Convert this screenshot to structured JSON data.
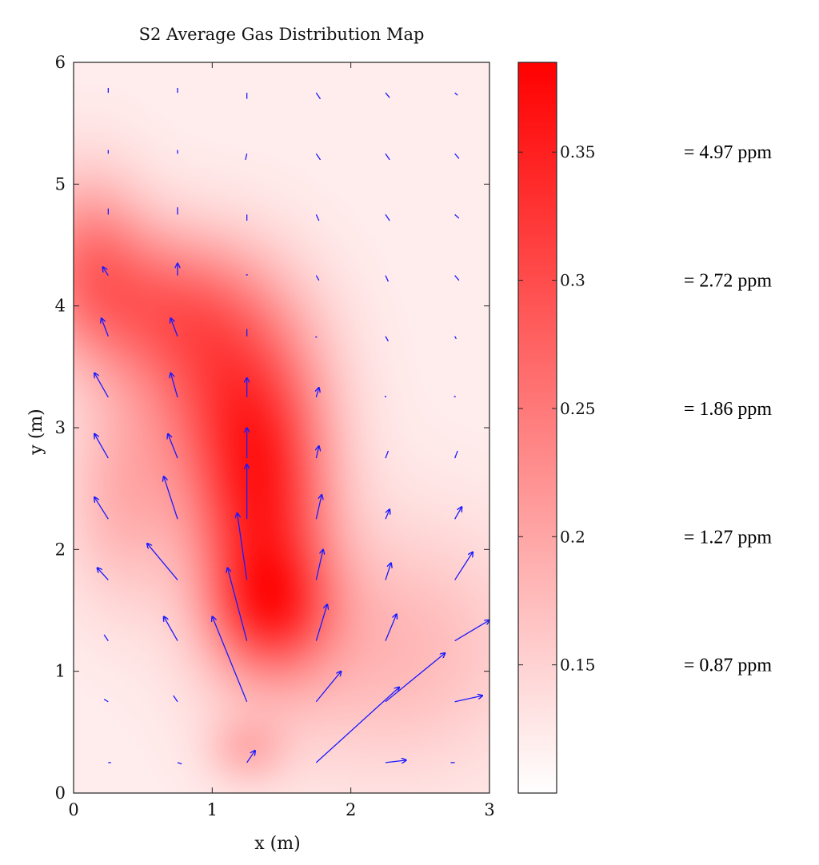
{
  "chart_data": {
    "type": "heatmap",
    "title": "S2 Average Gas Distribution Map",
    "xlabel": "x (m)",
    "ylabel": "y (m)",
    "xlim": [
      0,
      3
    ],
    "ylim": [
      0,
      6
    ],
    "x_ticks": [
      0,
      1,
      2,
      3
    ],
    "y_ticks": [
      0,
      1,
      2,
      3,
      4,
      5,
      6
    ],
    "colorbar": {
      "range": [
        0.1,
        0.385
      ],
      "ticks": [
        0.15,
        0.2,
        0.25,
        0.3,
        0.35
      ],
      "tick_labels": [
        "0.15",
        "0.2",
        "0.25",
        "0.3",
        "0.35"
      ],
      "color_low": "#ffffff",
      "color_high": "#ff0000"
    },
    "ppm_labels": [
      {
        "at_value": 0.35,
        "text": "= 4.97 ppm"
      },
      {
        "at_value": 0.3,
        "text": "= 2.72 ppm"
      },
      {
        "at_value": 0.25,
        "text": "= 1.86 ppm"
      },
      {
        "at_value": 0.2,
        "text": "= 1.27 ppm"
      },
      {
        "at_value": 0.15,
        "text": "= 0.87 ppm"
      }
    ],
    "concentration_blobs": [
      {
        "x": 1.35,
        "y": 2.3,
        "sx": 0.35,
        "sy": 0.8,
        "amp": 0.2
      },
      {
        "x": 1.1,
        "y": 3.3,
        "sx": 0.45,
        "sy": 0.6,
        "amp": 0.12
      },
      {
        "x": 0.65,
        "y": 4.0,
        "sx": 0.5,
        "sy": 0.45,
        "amp": 0.12
      },
      {
        "x": 0.1,
        "y": 4.4,
        "sx": 0.3,
        "sy": 0.5,
        "amp": 0.1
      },
      {
        "x": 1.45,
        "y": 1.5,
        "sx": 0.3,
        "sy": 0.35,
        "amp": 0.1
      },
      {
        "x": 0.35,
        "y": 2.4,
        "sx": 0.3,
        "sy": 0.6,
        "amp": 0.06
      },
      {
        "x": 2.3,
        "y": 1.2,
        "sx": 0.7,
        "sy": 0.7,
        "amp": 0.06
      },
      {
        "x": 1.25,
        "y": 0.35,
        "sx": 0.2,
        "sy": 0.2,
        "amp": 0.05
      }
    ],
    "background_level": 0.12,
    "wind_vectors": {
      "x_positions": [
        0.25,
        0.75,
        1.25,
        1.75,
        2.25,
        2.75
      ],
      "rows": [
        {
          "y": 5.75,
          "u": [
            0.0,
            0.0,
            0.0,
            0.03,
            0.03,
            0.02
          ],
          "v": [
            0.04,
            0.04,
            -0.05,
            -0.05,
            -0.04,
            -0.02
          ]
        },
        {
          "y": 5.25,
          "u": [
            0.0,
            0.0,
            -0.01,
            0.03,
            0.03,
            0.03
          ],
          "v": [
            0.03,
            0.03,
            -0.05,
            -0.05,
            -0.05,
            -0.04
          ]
        },
        {
          "y": 4.75,
          "u": [
            0.0,
            0.0,
            0.0,
            0.02,
            0.03,
            0.03
          ],
          "v": [
            0.05,
            0.06,
            -0.05,
            -0.05,
            -0.05,
            -0.03
          ]
        },
        {
          "y": 4.25,
          "u": [
            -0.04,
            0.0,
            0.0,
            0.02,
            0.02,
            0.03
          ],
          "v": [
            0.07,
            0.1,
            0.01,
            -0.04,
            -0.05,
            -0.04
          ]
        },
        {
          "y": 3.75,
          "u": [
            -0.05,
            -0.05,
            0.0,
            0.0,
            0.02,
            0.01
          ],
          "v": [
            0.15,
            0.15,
            0.06,
            -0.01,
            -0.04,
            -0.02
          ]
        },
        {
          "y": 3.25,
          "u": [
            -0.1,
            -0.05,
            0.0,
            0.02,
            0.0,
            0.0
          ],
          "v": [
            0.2,
            0.2,
            0.16,
            0.08,
            0.01,
            0.01
          ]
        },
        {
          "y": 2.75,
          "u": [
            -0.1,
            -0.07,
            0.0,
            0.02,
            0.02,
            0.02
          ],
          "v": [
            0.2,
            0.2,
            0.25,
            0.1,
            0.06,
            0.06
          ]
        },
        {
          "y": 2.25,
          "u": [
            -0.1,
            -0.1,
            0.0,
            0.04,
            0.03,
            0.05
          ],
          "v": [
            0.18,
            0.35,
            0.45,
            0.2,
            0.08,
            0.1
          ]
        },
        {
          "y": 1.75,
          "u": [
            -0.08,
            -0.22,
            -0.07,
            0.05,
            0.04,
            0.13
          ],
          "v": [
            0.1,
            0.3,
            0.55,
            0.25,
            0.14,
            0.23
          ]
        },
        {
          "y": 1.25,
          "u": [
            -0.03,
            -0.1,
            -0.14,
            0.08,
            0.08,
            0.25
          ],
          "v": [
            0.05,
            0.2,
            0.6,
            0.3,
            0.22,
            0.17
          ]
        },
        {
          "y": 0.75,
          "u": [
            -0.03,
            -0.03,
            -0.25,
            0.18,
            0.43,
            0.2
          ],
          "v": [
            0.02,
            0.05,
            0.7,
            0.25,
            0.4,
            0.05
          ]
        },
        {
          "y": 0.25,
          "u": [
            0.02,
            0.03,
            0.06,
            0.6,
            0.15,
            -0.03
          ],
          "v": [
            0.0,
            -0.01,
            0.1,
            0.62,
            0.02,
            0.0
          ]
        }
      ]
    }
  }
}
